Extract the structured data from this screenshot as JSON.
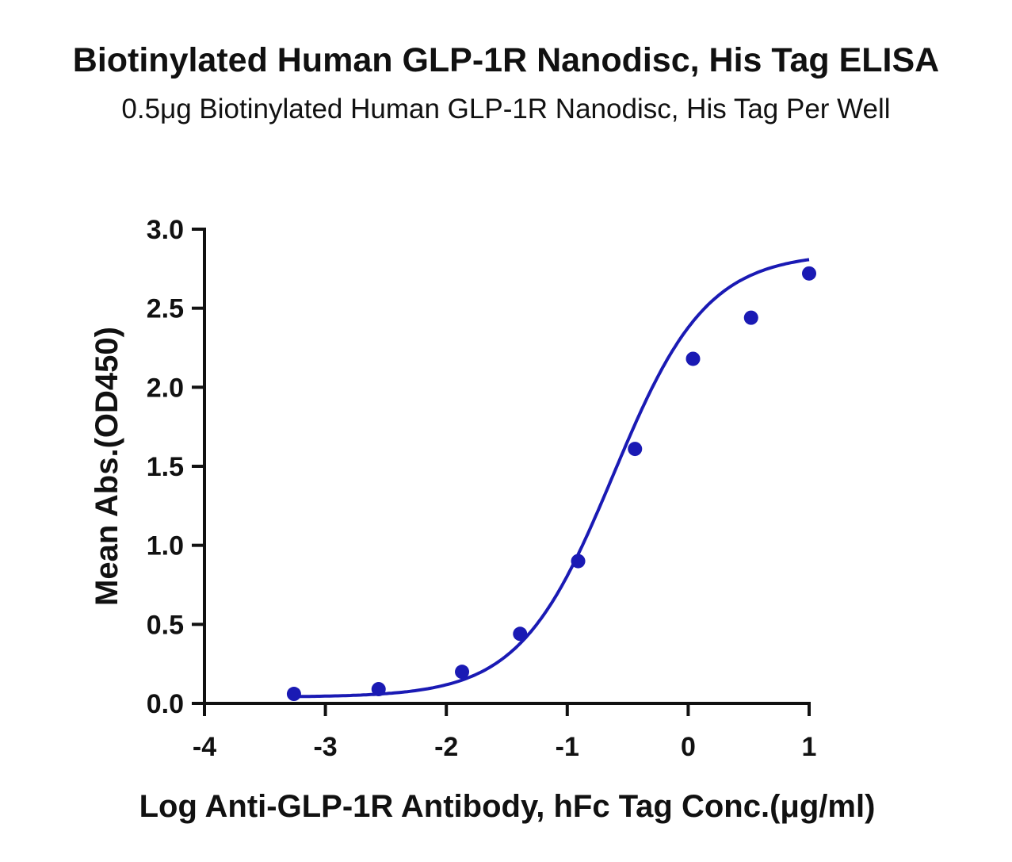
{
  "chart_data": {
    "type": "scatter",
    "title": "Biotinylated Human GLP-1R Nanodisc, His Tag ELISA",
    "subtitle": "0.5μg Biotinylated Human GLP-1R Nanodisc, His Tag Per Well",
    "xlabel": "Log Anti-GLP-1R Antibody, hFc Tag Conc.(μg/ml)",
    "ylabel": "Mean Abs.(OD450)",
    "xlim": [
      -4,
      1
    ],
    "ylim": [
      0,
      3.0
    ],
    "xticks": [
      "-4",
      "-3",
      "-2",
      "-1",
      "0",
      "1"
    ],
    "yticks": [
      "0.0",
      "0.5",
      "1.0",
      "1.5",
      "2.0",
      "2.5",
      "3.0"
    ],
    "grid": false,
    "series": [
      {
        "x": [
          -3.26,
          -2.56,
          -1.87,
          -1.39,
          -0.91,
          -0.44,
          0.04,
          0.52,
          1.0
        ],
        "y": [
          0.06,
          0.09,
          0.2,
          0.44,
          0.9,
          1.61,
          2.18,
          2.44,
          2.72
        ],
        "color": "#1a1ab4",
        "fit": "four-parameter logistic curve"
      }
    ]
  }
}
